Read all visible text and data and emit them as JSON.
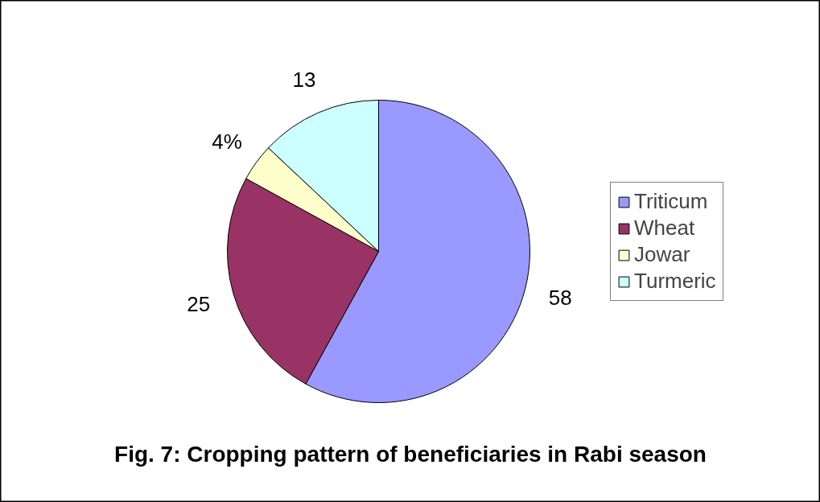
{
  "chart_data": {
    "type": "pie",
    "title": "Fig. 7: Cropping pattern of beneficiaries in Rabi season",
    "categories": [
      "Triticum",
      "Wheat",
      "Jowar",
      "Turmeric"
    ],
    "values": [
      58,
      25,
      4,
      13
    ],
    "colors": [
      "#9999ff",
      "#993366",
      "#ffffcc",
      "#ccffff"
    ],
    "value_labels": [
      "58",
      "25",
      "4%",
      "13"
    ],
    "legend": "right"
  }
}
